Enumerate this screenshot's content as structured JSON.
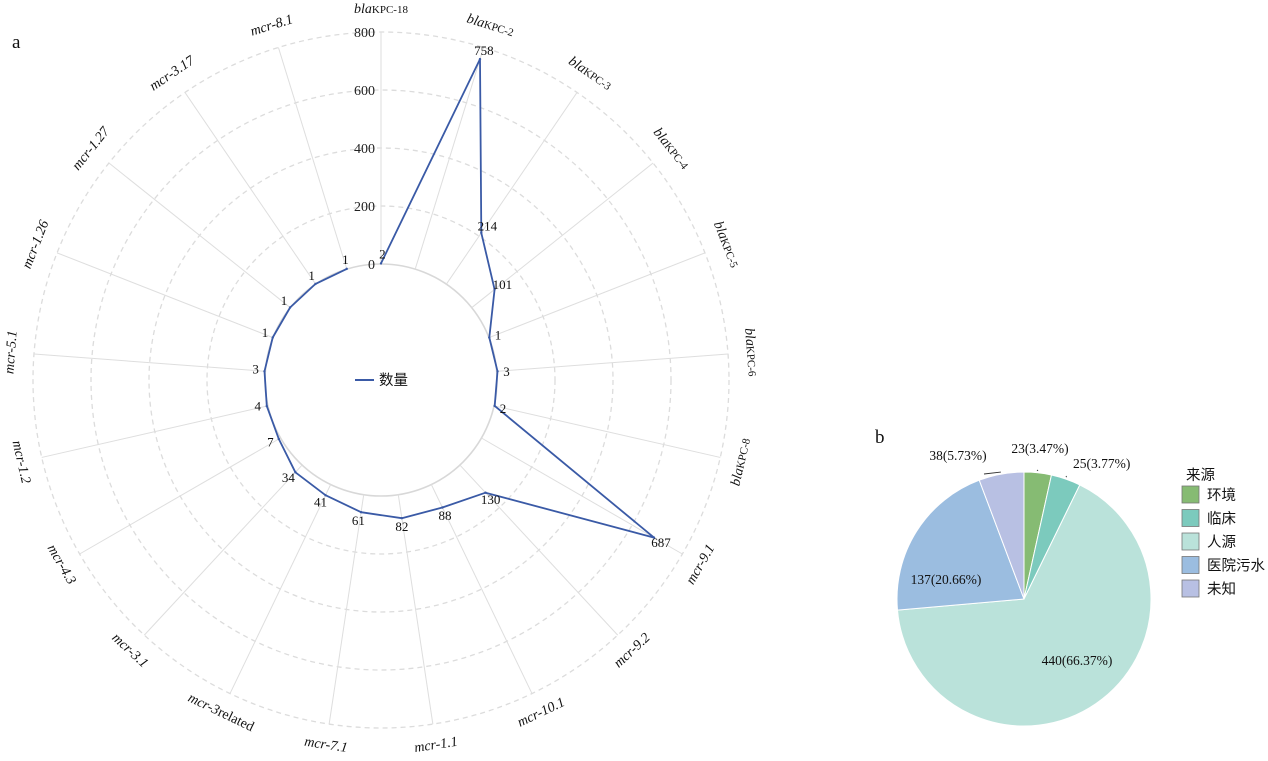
{
  "panels": {
    "a": "a",
    "b": "b"
  },
  "chart_data": [
    {
      "type": "radar",
      "panel": "a",
      "range": [
        0,
        800
      ],
      "ticks": [
        0,
        200,
        400,
        600,
        800
      ],
      "legend": {
        "label": "数量",
        "color": "#3a5aa6",
        "placement": "center"
      },
      "series": [
        {
          "name": "数量",
          "color": "#3a5aa6",
          "points": [
            {
              "gene_prefix": "bla",
              "gene_suffix": "KPC-18",
              "value": 2
            },
            {
              "gene_prefix": "bla",
              "gene_suffix": "KPC-2",
              "value": 758
            },
            {
              "gene_prefix": "bla",
              "gene_suffix": "KPC-3",
              "value": 214
            },
            {
              "gene_prefix": "bla",
              "gene_suffix": "KPC-4",
              "value": 101
            },
            {
              "gene_prefix": "bla",
              "gene_suffix": "KPC-5",
              "value": 1
            },
            {
              "gene_prefix": "bla",
              "gene_suffix": "KPC-6",
              "value": 3
            },
            {
              "gene_prefix": "bla",
              "gene_suffix": "KPC-8",
              "value": 2
            },
            {
              "gene_prefix": "mcr-9.1",
              "gene_suffix": "",
              "value": 687
            },
            {
              "gene_prefix": "mcr-9.2",
              "gene_suffix": "",
              "value": 130
            },
            {
              "gene_prefix": "mcr-10.1",
              "gene_suffix": "",
              "value": 88
            },
            {
              "gene_prefix": "mcr-1.1",
              "gene_suffix": "",
              "value": 82
            },
            {
              "gene_prefix": "mcr-7.1",
              "gene_suffix": "",
              "value": 61
            },
            {
              "gene_prefix": "mcr-3",
              "gene_suffix": "related",
              "value": 41
            },
            {
              "gene_prefix": "mcr-3.1",
              "gene_suffix": "",
              "value": 34
            },
            {
              "gene_prefix": "mcr-4.3",
              "gene_suffix": "",
              "value": 7
            },
            {
              "gene_prefix": "mcr-1.2",
              "gene_suffix": "",
              "value": 4
            },
            {
              "gene_prefix": "mcr-5.1",
              "gene_suffix": "",
              "value": 3
            },
            {
              "gene_prefix": "mcr-1.26",
              "gene_suffix": "",
              "value": 1
            },
            {
              "gene_prefix": "mcr-1.27",
              "gene_suffix": "",
              "value": 1
            },
            {
              "gene_prefix": "mcr-3.17",
              "gene_suffix": "",
              "value": 1
            },
            {
              "gene_prefix": "mcr-8.1",
              "gene_suffix": "",
              "value": 1
            }
          ]
        }
      ]
    },
    {
      "type": "pie",
      "panel": "b",
      "legend": {
        "title": "来源",
        "placement": "right"
      },
      "slices": [
        {
          "name": "环境",
          "value": 23,
          "percent": "3.47%",
          "label": "23(3.47%)",
          "color": "#86bb73"
        },
        {
          "name": "临床",
          "value": 25,
          "percent": "3.77%",
          "label": "25(3.77%)",
          "color": "#7ccabd"
        },
        {
          "name": "人源",
          "value": 440,
          "percent": "66.37%",
          "label": "440(66.37%)",
          "color": "#bae2da"
        },
        {
          "name": "医院污水",
          "value": 137,
          "percent": "20.66%",
          "label": "137(20.66%)",
          "color": "#9bbde0"
        },
        {
          "name": "未知",
          "value": 38,
          "percent": "5.73%",
          "label": "38(5.73%)",
          "color": "#b8c0e3"
        }
      ]
    }
  ]
}
